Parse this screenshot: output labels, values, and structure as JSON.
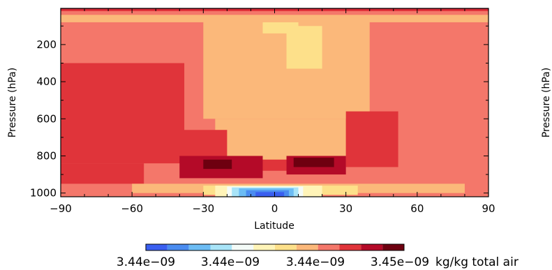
{
  "chart_data": [
    {
      "type": "heatmap",
      "xlabel": "Latitude",
      "ylabel": "Pressure (hPa)",
      "xlim": [
        -90,
        90
      ],
      "ylim": [
        1020,
        5
      ],
      "x_ticks": [
        -90,
        -60,
        -30,
        0,
        30,
        60,
        90
      ],
      "x_tick_labels": [
        "−90",
        "−60",
        "−30",
        "0",
        "30",
        "60",
        "90"
      ],
      "y_ticks": [
        200,
        400,
        600,
        800,
        1000
      ],
      "y_tick_labels": [
        "200",
        "400",
        "600",
        "800",
        "1000"
      ],
      "colorbar": {
        "colors": [
          "#3a5ff0",
          "#4a8cf0",
          "#6cbcf4",
          "#a8e4f8",
          "#f4fbf8",
          "#fff4b8",
          "#fde08a",
          "#fbb87a",
          "#f4776a",
          "#e0343a",
          "#b40a28",
          "#6e0010"
        ],
        "labels": [
          "3.44e−09",
          "3.44e−09",
          "3.44e−09",
          "3.45e−09"
        ],
        "units": "kg/kg total air"
      },
      "levels_legend": "level index 0 (low, blue) → 11 (high, dark red)",
      "field_regions": [
        {
          "level": 8,
          "lat": [
            -90,
            90
          ],
          "p": [
            5,
            1020
          ]
        },
        {
          "level": 7,
          "lat": [
            -30,
            40
          ],
          "p": [
            60,
            600
          ]
        },
        {
          "level": 7,
          "lat": [
            -90,
            90
          ],
          "p": [
            40,
            80
          ]
        },
        {
          "level": 7,
          "lat": [
            -25,
            30
          ],
          "p": [
            600,
            820
          ]
        },
        {
          "level": 6,
          "lat": [
            5,
            20
          ],
          "p": [
            100,
            330
          ]
        },
        {
          "level": 6,
          "lat": [
            -5,
            10
          ],
          "p": [
            80,
            140
          ]
        },
        {
          "level": 9,
          "lat": [
            -90,
            -38
          ],
          "p": [
            300,
            840
          ]
        },
        {
          "level": 9,
          "lat": [
            -90,
            -55
          ],
          "p": [
            840,
            950
          ]
        },
        {
          "level": 9,
          "lat": [
            -45,
            -20
          ],
          "p": [
            660,
            820
          ]
        },
        {
          "level": 9,
          "lat": [
            30,
            52
          ],
          "p": [
            560,
            860
          ]
        },
        {
          "level": 9,
          "lat": [
            -10,
            5
          ],
          "p": [
            820,
            880
          ]
        },
        {
          "level": 10,
          "lat": [
            -40,
            -5
          ],
          "p": [
            800,
            920
          ]
        },
        {
          "level": 10,
          "lat": [
            5,
            30
          ],
          "p": [
            800,
            900
          ]
        },
        {
          "level": 11,
          "lat": [
            -30,
            -18
          ],
          "p": [
            820,
            870
          ]
        },
        {
          "level": 11,
          "lat": [
            8,
            25
          ],
          "p": [
            810,
            860
          ]
        },
        {
          "level": 9,
          "lat": [
            -90,
            90
          ],
          "p": [
            5,
            20
          ]
        },
        {
          "level": 10,
          "lat": [
            -90,
            90
          ],
          "p": [
            5,
            10
          ]
        },
        {
          "level": 7,
          "lat": [
            -60,
            80
          ],
          "p": [
            950,
            1000
          ]
        },
        {
          "level": 6,
          "lat": [
            -30,
            35
          ],
          "p": [
            960,
            1010
          ]
        },
        {
          "level": 5,
          "lat": [
            -25,
            20
          ],
          "p": [
            960,
            1020
          ]
        },
        {
          "level": 4,
          "lat": [
            -20,
            12
          ],
          "p": [
            965,
            1020
          ]
        },
        {
          "level": 3,
          "lat": [
            -18,
            10
          ],
          "p": [
            970,
            1020
          ]
        },
        {
          "level": 2,
          "lat": [
            -15,
            8
          ],
          "p": [
            975,
            1020
          ]
        },
        {
          "level": 1,
          "lat": [
            -12,
            6
          ],
          "p": [
            985,
            1020
          ]
        },
        {
          "level": 0,
          "lat": [
            -8,
            4
          ],
          "p": [
            995,
            1020
          ]
        }
      ]
    },
    {
      "type": "heatmap",
      "ylabel": "Pressure (hPa)",
      "note": "second panel cut off at right edge; only axis title partially visible"
    }
  ]
}
